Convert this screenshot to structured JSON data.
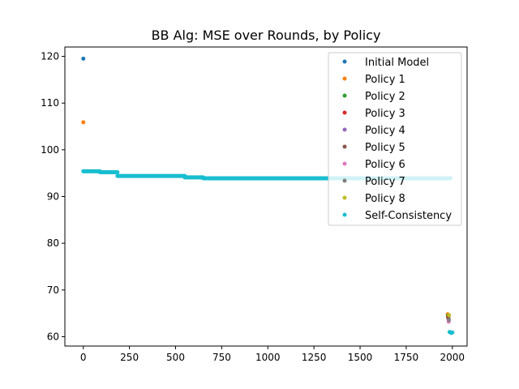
{
  "chart_data": {
    "type": "scatter",
    "title": "BB Alg: MSE over Rounds, by Policy",
    "xlabel": "",
    "ylabel": "",
    "xlim": [
      -100,
      2080
    ],
    "ylim": [
      58,
      122
    ],
    "x_ticks": [
      "0",
      "250",
      "500",
      "750",
      "1000",
      "1250",
      "1500",
      "1750",
      "2000"
    ],
    "x_tick_values": [
      0,
      250,
      500,
      750,
      1000,
      1250,
      1500,
      1750,
      2000
    ],
    "y_ticks": [
      "60",
      "70",
      "80",
      "90",
      "100",
      "110",
      "120"
    ],
    "y_tick_values": [
      60,
      70,
      80,
      90,
      100,
      110,
      120
    ],
    "legend_position": "top-right",
    "series": [
      {
        "name": "Initial Model",
        "color": "#1f77b4",
        "points": [
          [
            0,
            119.5
          ]
        ]
      },
      {
        "name": "Policy 1",
        "color": "#ff7f0e",
        "points": [
          [
            0,
            105.9
          ],
          [
            1975,
            64.8
          ]
        ]
      },
      {
        "name": "Policy 2",
        "color": "#2ca02c",
        "points": [
          [
            1976,
            64.5
          ]
        ]
      },
      {
        "name": "Policy 3",
        "color": "#d62728",
        "points": [
          [
            1977,
            64.2
          ]
        ]
      },
      {
        "name": "Policy 4",
        "color": "#9467bd",
        "points": [
          [
            1978,
            63.9
          ]
        ]
      },
      {
        "name": "Policy 5",
        "color": "#8c564b",
        "points": [
          [
            1979,
            64.0
          ]
        ]
      },
      {
        "name": "Policy 6",
        "color": "#e377c2",
        "points": [
          [
            1980,
            63.2
          ]
        ]
      },
      {
        "name": "Policy 7",
        "color": "#7f7f7f",
        "points": [
          [
            1981,
            63.6
          ]
        ]
      },
      {
        "name": "Policy 8",
        "color": "#bcbd22",
        "points": [
          [
            1982,
            64.6
          ]
        ]
      },
      {
        "name": "Self-Consistency",
        "color": "#17becf",
        "segments": [
          {
            "x_start": 0,
            "x_end": 90,
            "y": 95.4
          },
          {
            "x_start": 90,
            "x_end": 185,
            "y": 95.2
          },
          {
            "x_start": 185,
            "x_end": 550,
            "y": 94.4
          },
          {
            "x_start": 550,
            "x_end": 650,
            "y": 94.1
          },
          {
            "x_start": 650,
            "x_end": 1990,
            "y": 93.9
          }
        ],
        "points": [
          [
            1985,
            61.0
          ],
          [
            1990,
            60.9
          ],
          [
            1995,
            60.8
          ],
          [
            2000,
            60.9
          ]
        ]
      }
    ]
  }
}
